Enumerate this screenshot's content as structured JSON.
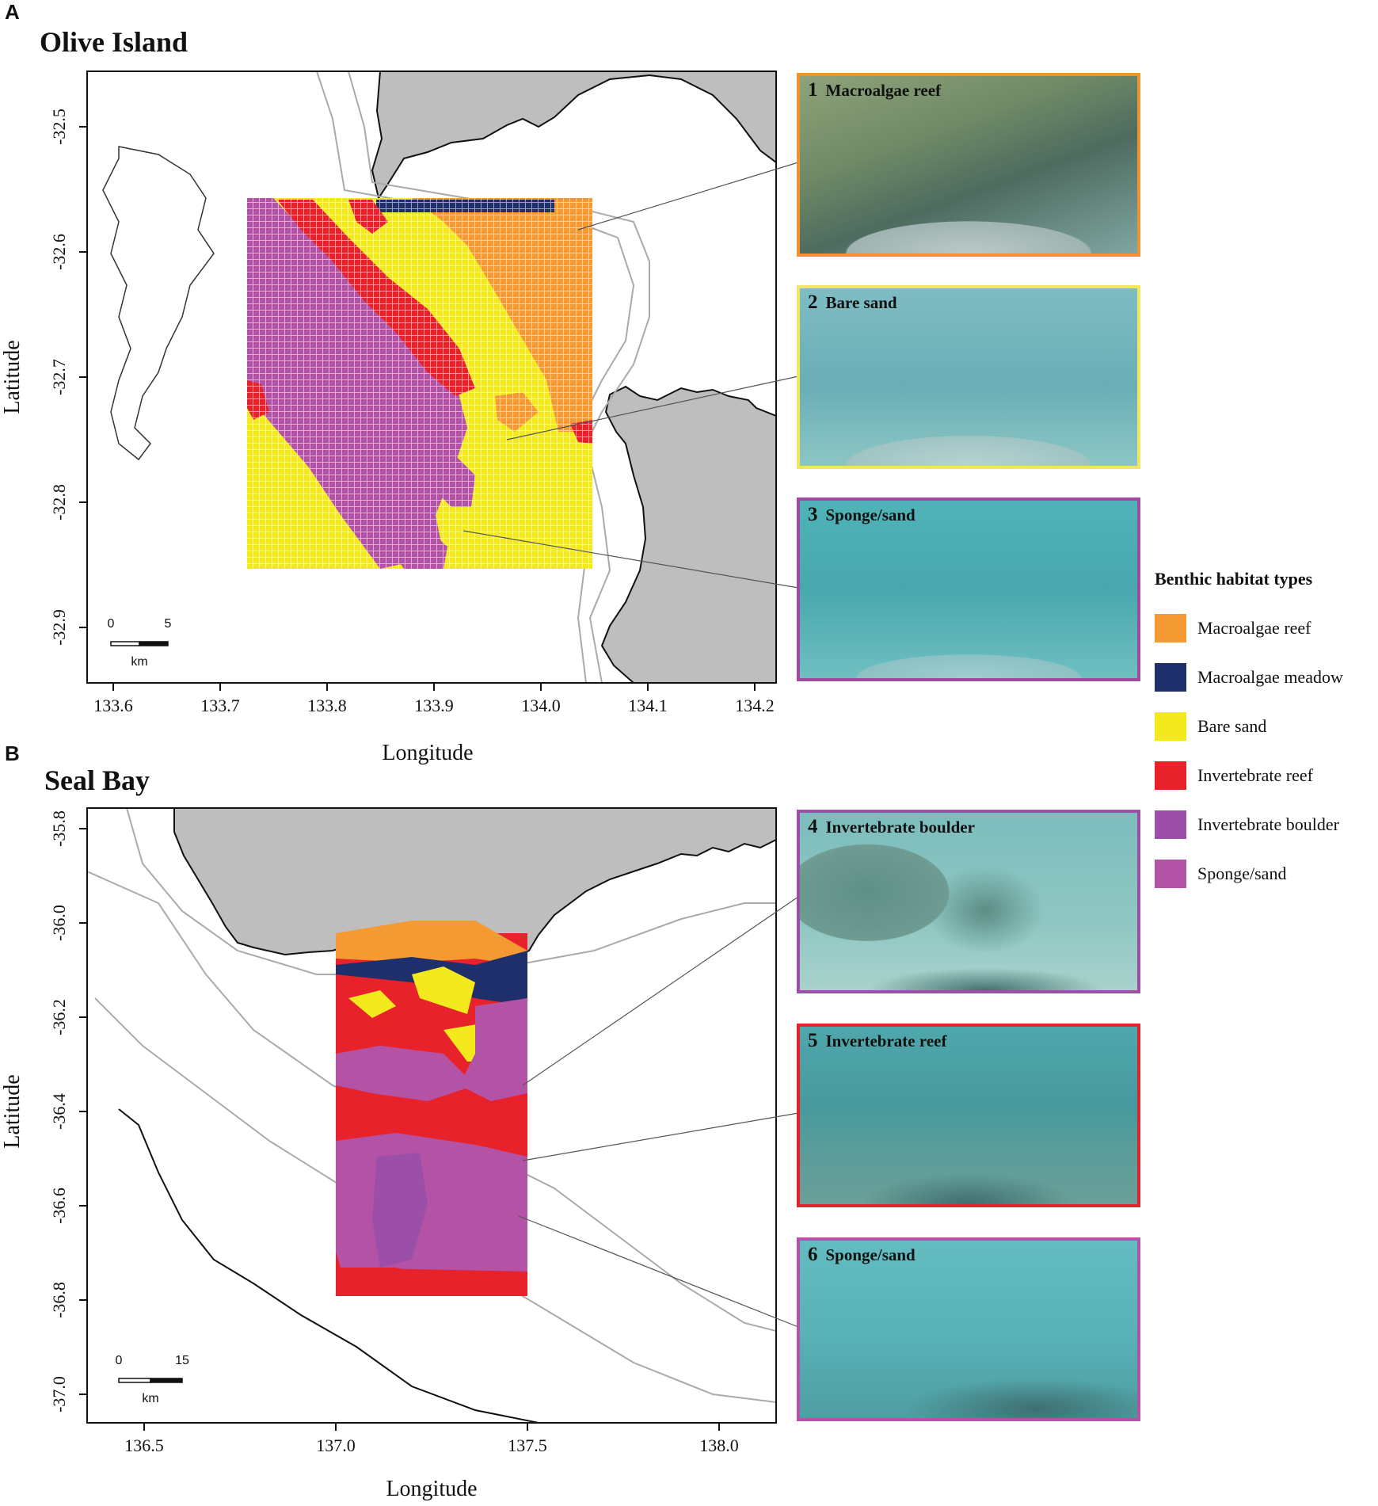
{
  "panels": [
    {
      "letter": "A",
      "title": "Olive Island",
      "xlabel": "Longitude",
      "ylabel": "Latitude",
      "xticks": [
        "133.6",
        "133.7",
        "133.8",
        "133.9",
        "134.0",
        "134.1",
        "134.2"
      ],
      "yticks": [
        "-32.5",
        "-32.6",
        "-32.7",
        "-32.8",
        "-32.9"
      ],
      "scale": {
        "start": "0",
        "end": "5",
        "unit": "km"
      },
      "photos": [
        {
          "num": "1",
          "label": "Macroalgae reef",
          "border": "#f0922f"
        },
        {
          "num": "2",
          "label": "Bare sand",
          "border": "#f2e660"
        },
        {
          "num": "3",
          "label": "Sponge/sand",
          "border": "#a24aa0"
        }
      ]
    },
    {
      "letter": "B",
      "title": "Seal Bay",
      "xlabel": "Longitude",
      "ylabel": "Latitude",
      "xticks": [
        "136.5",
        "137.0",
        "137.5",
        "138.0"
      ],
      "yticks": [
        "-35.8",
        "-36.0",
        "-36.2",
        "-36.4",
        "-36.6",
        "-36.8",
        "-37.0"
      ],
      "scale": {
        "start": "0",
        "end": "15",
        "unit": "km"
      },
      "photos": [
        {
          "num": "4",
          "label": "Invertebrate boulder",
          "border": "#9b4fa8"
        },
        {
          "num": "5",
          "label": "Invertebrate reef",
          "border": "#e0242b"
        },
        {
          "num": "6",
          "label": "Sponge/sand",
          "border": "#b452a6"
        }
      ]
    }
  ],
  "legend": {
    "title": "Benthic habitat types",
    "items": [
      {
        "label": "Macroalgae reef",
        "color": "#f59a32"
      },
      {
        "label": "Macroalgae meadow",
        "color": "#1f2f6b"
      },
      {
        "label": "Bare sand",
        "color": "#f2ea1c"
      },
      {
        "label": "Invertebrate reef",
        "color": "#e8222a"
      },
      {
        "label": "Invertebrate boulder",
        "color": "#9b4fa8"
      },
      {
        "label": "Sponge/sand",
        "color": "#b452a6"
      }
    ]
  },
  "colors": {
    "land": "#bebebe",
    "coast": "#111111",
    "bathy": "#aaaaaa"
  }
}
